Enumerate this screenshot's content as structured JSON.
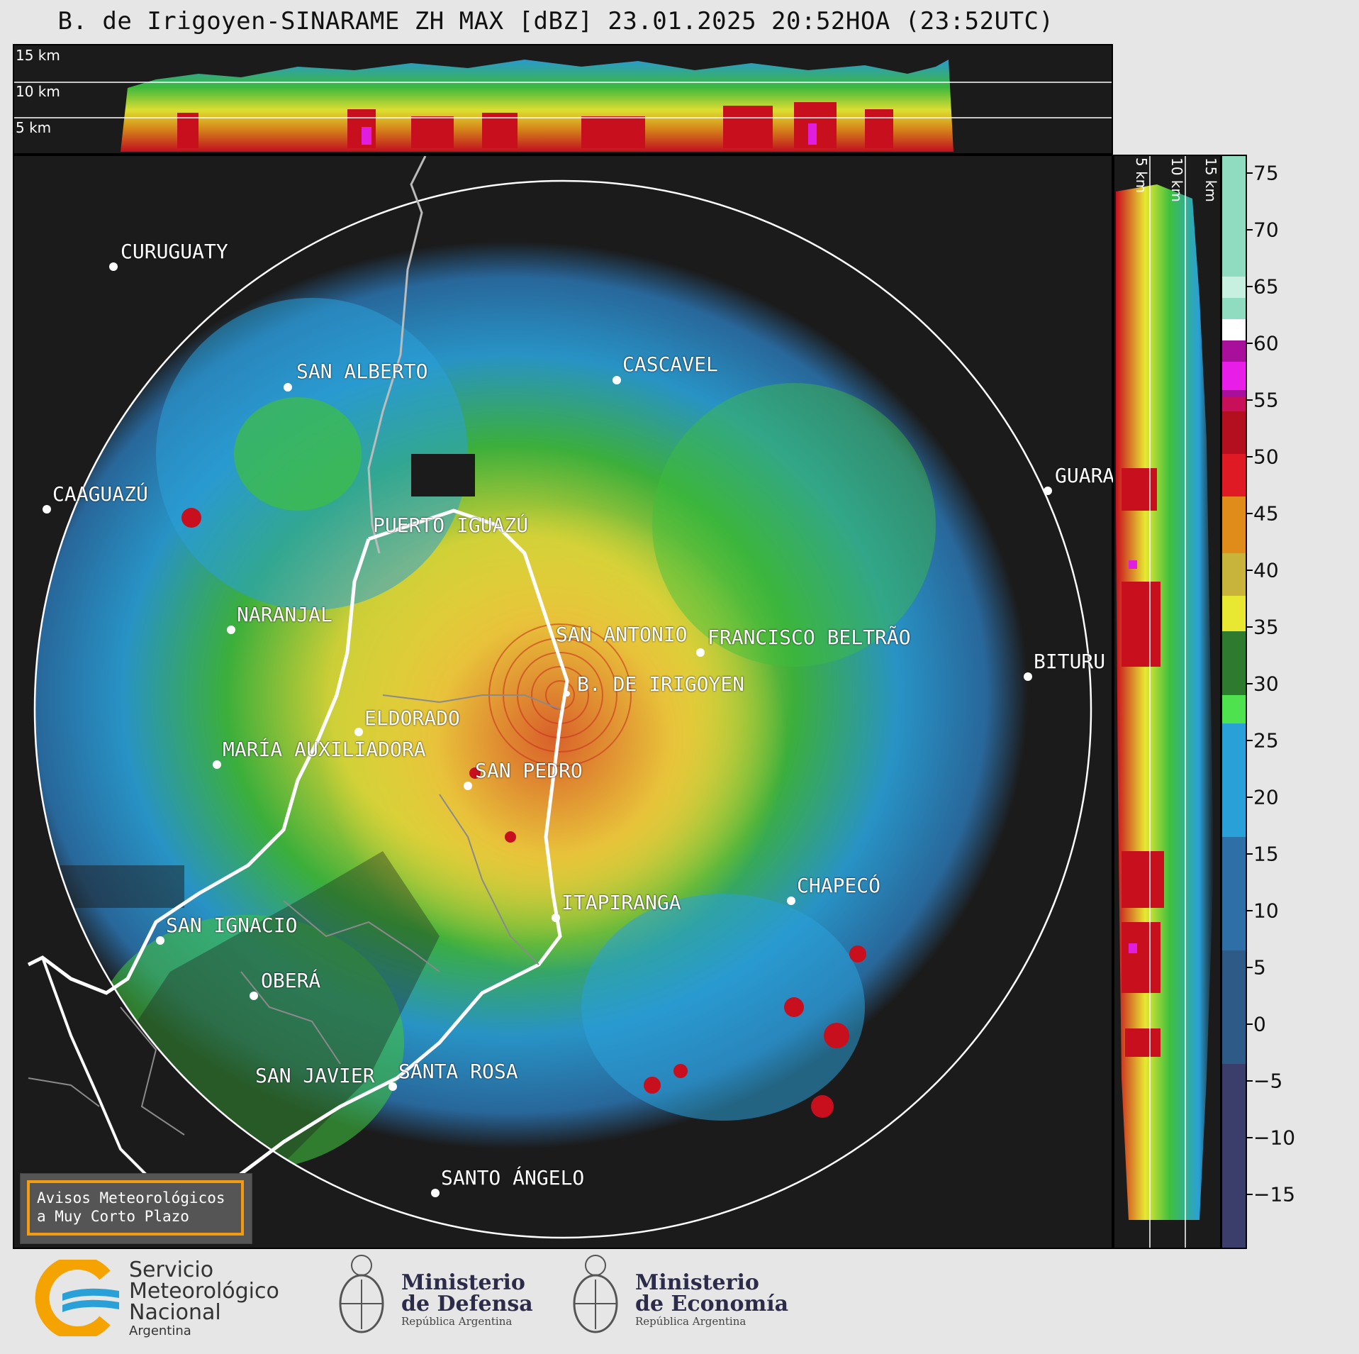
{
  "title": "B. de Irigoyen-SINARAME ZH MAX [dBZ] 23.01.2025 20:52HOA (23:52UTC)",
  "top_panel": {
    "height_labels": [
      "15 km",
      "10 km",
      "5 km"
    ]
  },
  "side_panel": {
    "height_labels": [
      "5 km",
      "10 km",
      "15 km"
    ]
  },
  "colorbar": {
    "unit": "dBZ",
    "ticks": [
      "75",
      "70",
      "65",
      "60",
      "55",
      "50",
      "45",
      "40",
      "35",
      "30",
      "25",
      "20",
      "15",
      "10",
      "5",
      "0",
      "−5",
      "−10",
      "−15"
    ],
    "colors": {
      "neg": "#3b3d6b",
      "low_blue": "#2f6fa8",
      "blue": "#2aa0d8",
      "green": "#2e8b2e",
      "lime": "#4ee34e",
      "yellow": "#e8e832",
      "orange": "#e08c1a",
      "red": "#c80f1e",
      "magenta": "#e01ee0",
      "white": "#ffffff",
      "mint": "#8fdcc0"
    }
  },
  "cities": [
    {
      "name": "CURUGUATY"
    },
    {
      "name": "SAN ALBERTO"
    },
    {
      "name": "CASCAVEL"
    },
    {
      "name": "CAAGUAZÚ"
    },
    {
      "name": "GUARA"
    },
    {
      "name": "PUERTO IGUAZÚ"
    },
    {
      "name": "NARANJAL"
    },
    {
      "name": "SAN ANTONIO"
    },
    {
      "name": "FRANCISCO BELTRÃO"
    },
    {
      "name": "B. DE IRIGOYEN"
    },
    {
      "name": "BITURU"
    },
    {
      "name": "ELDORADO"
    },
    {
      "name": "MARÍA AUXILIADORA"
    },
    {
      "name": "SAN PEDRO"
    },
    {
      "name": "CHAPECÓ"
    },
    {
      "name": "ITAPIRANGA"
    },
    {
      "name": "SAN IGNACIO"
    },
    {
      "name": "OBERÁ"
    },
    {
      "name": "SAN JAVIER"
    },
    {
      "name": "SANTA ROSA"
    },
    {
      "name": "SANTO ÁNGELO"
    }
  ],
  "warning": {
    "line1": "Avisos Meteorológicos",
    "line2": "a Muy Corto Plazo"
  },
  "logos": {
    "smn": {
      "line1": "Servicio",
      "line2": "Meteorológico",
      "line3": "Nacional",
      "line4": "Argentina"
    },
    "defensa": {
      "title1": "Ministerio",
      "title2": "de Defensa",
      "sub": "República Argentina"
    },
    "economia": {
      "title1": "Ministerio",
      "title2": "de Economía",
      "sub": "República Argentina"
    }
  }
}
